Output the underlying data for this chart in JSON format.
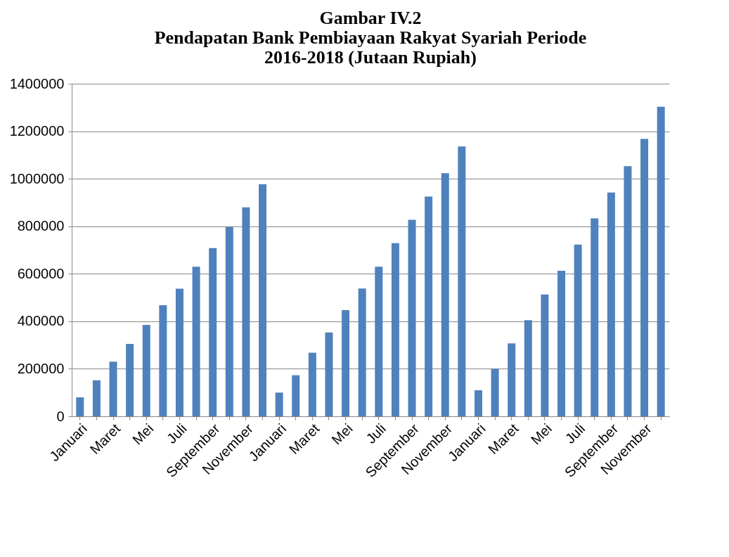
{
  "chart_data": {
    "type": "bar",
    "title": "Gambar IV.2\nPendapatan Bank Pembiayaan Rakyat Syariah Periode\n2016-2018 (Jutaan Rupiah)",
    "categories": [
      "Januari",
      null,
      "Maret",
      null,
      "Mei",
      null,
      "Juli",
      null,
      "September",
      null,
      "November",
      null,
      "Januari",
      null,
      "Maret",
      null,
      "Mei",
      null,
      "Juli",
      null,
      "September",
      null,
      "November",
      null,
      "Januari",
      null,
      "Maret",
      null,
      "Mei",
      null,
      "Juli",
      null,
      "September",
      null,
      "November",
      null
    ],
    "values": [
      80000,
      152000,
      230000,
      305000,
      385000,
      468000,
      537000,
      630000,
      708000,
      796000,
      880000,
      977000,
      100000,
      173000,
      268000,
      353000,
      447000,
      538000,
      630000,
      729000,
      827000,
      925000,
      1023000,
      1136000,
      110000,
      200000,
      307000,
      405000,
      513000,
      613000,
      723000,
      833000,
      942000,
      1053000,
      1168000,
      1303000
    ],
    "color": "#4f81bd",
    "ylim": [
      0,
      1400000
    ],
    "yticks": [
      0,
      200000,
      400000,
      600000,
      800000,
      1000000,
      1200000,
      1400000
    ],
    "grid": "y"
  }
}
